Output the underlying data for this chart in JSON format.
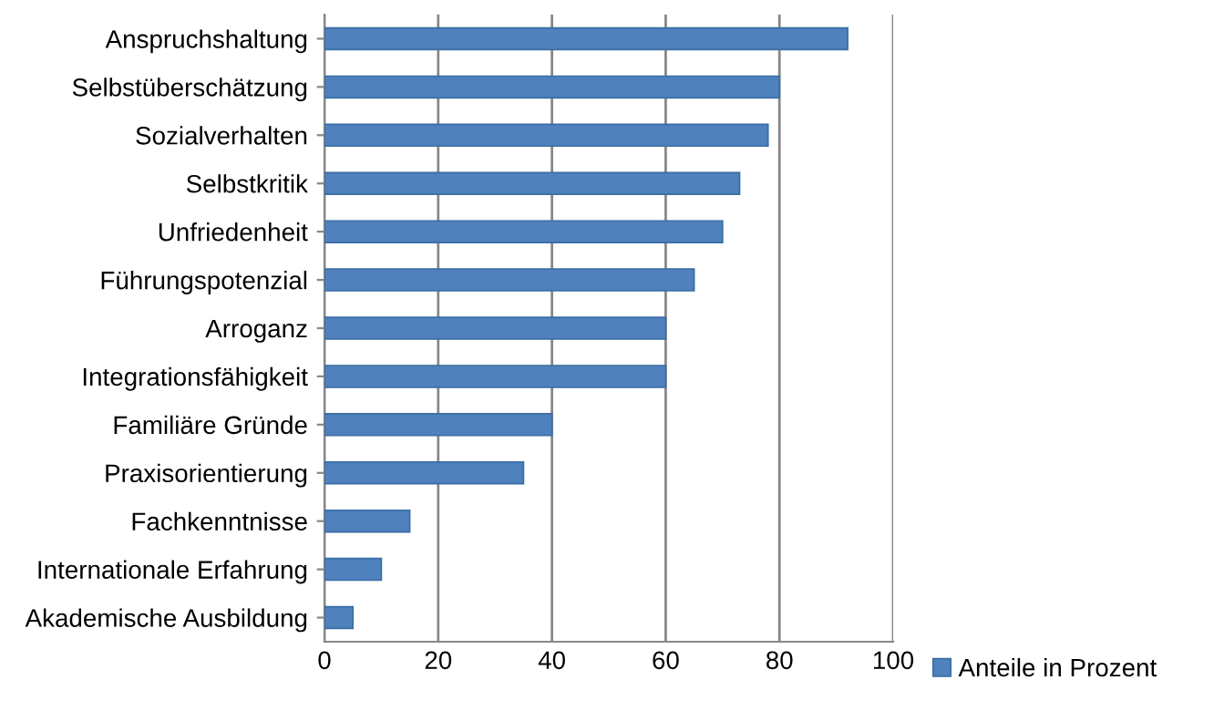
{
  "chart_data": {
    "type": "bar",
    "orientation": "horizontal",
    "categories": [
      "Anspruchshaltung",
      "Selbstüberschätzung",
      "Sozialverhalten",
      "Selbstkritik",
      "Unfriedenheit",
      "Führungspotenzial",
      "Arroganz",
      "Integrationsfähigkeit",
      "Familiäre Gründe",
      "Praxisorientierung",
      "Fachkenntnisse",
      "Internationale Erfahrung",
      "Akademische Ausbildung"
    ],
    "series": [
      {
        "name": "Anteile in Prozent",
        "color": "#4f81bd",
        "values": [
          92,
          80,
          78,
          73,
          70,
          65,
          60,
          60,
          40,
          35,
          15,
          10,
          5
        ]
      }
    ],
    "xlim": [
      0,
      100
    ],
    "xticks": [
      0,
      20,
      40,
      60,
      80,
      100
    ],
    "grid": "x",
    "legend": "bottom right"
  }
}
